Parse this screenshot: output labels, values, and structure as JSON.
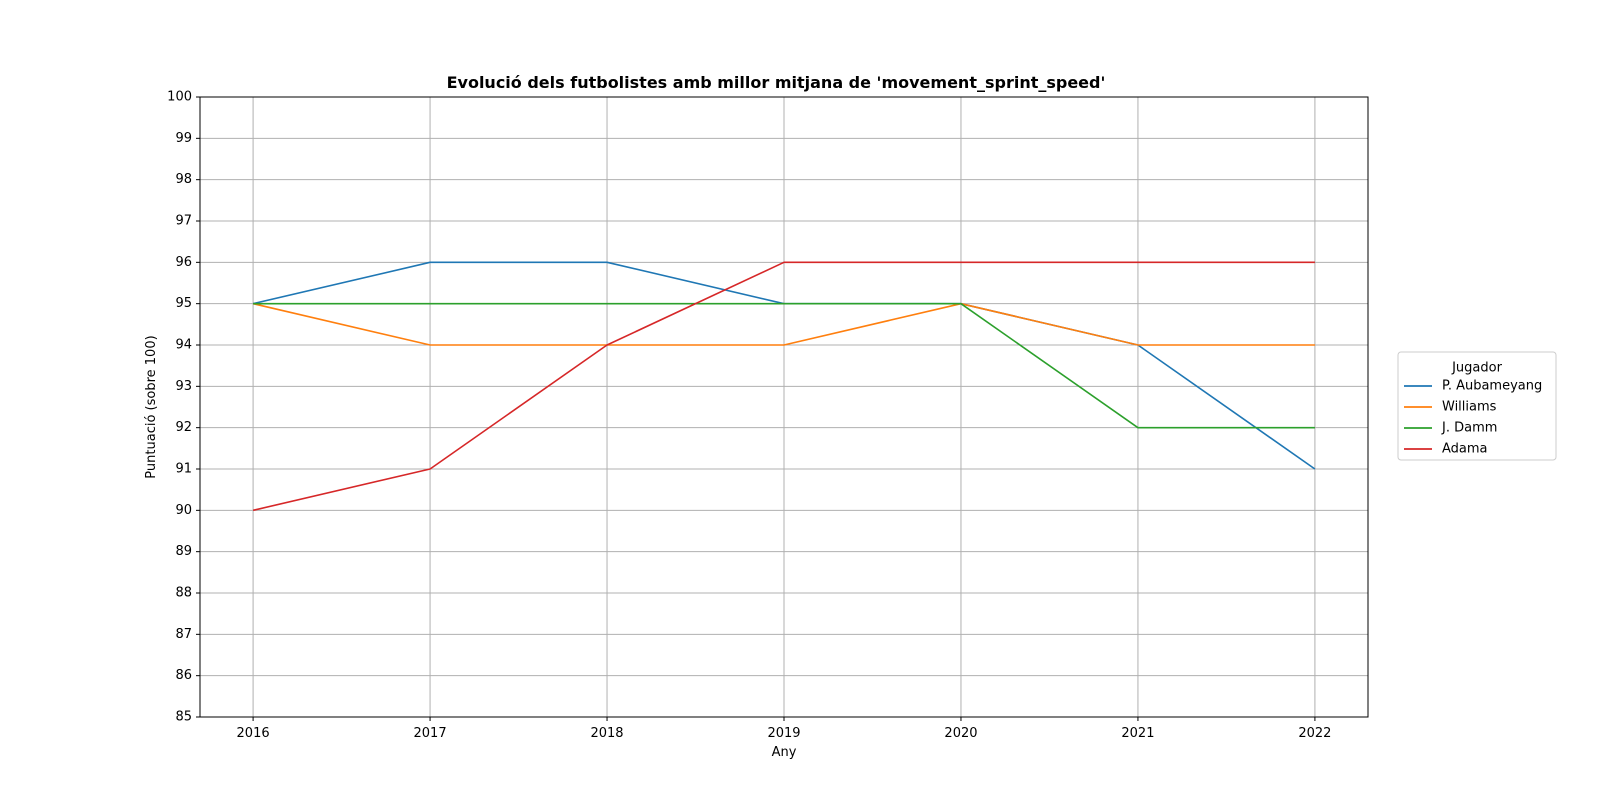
{
  "chart_data": {
    "type": "line",
    "title": "Evolució dels futbolistes amb millor mitjana de 'movement_sprint_speed'",
    "xlabel": "Any",
    "ylabel": "Puntuació (sobre 100)",
    "x": [
      2016,
      2017,
      2018,
      2019,
      2020,
      2021,
      2022
    ],
    "x_tick_labels": [
      "2016",
      "2017",
      "2018",
      "2019",
      "2020",
      "2021",
      "2022"
    ],
    "ylim": [
      85,
      100
    ],
    "y_ticks": [
      85,
      86,
      87,
      88,
      89,
      90,
      91,
      92,
      93,
      94,
      95,
      96,
      97,
      98,
      99,
      100
    ],
    "grid": true,
    "legend": {
      "title": "Jugador",
      "placement": "center-right outside"
    },
    "series": [
      {
        "name": "P. Aubameyang",
        "color": "#1f77b4",
        "values": [
          95,
          96,
          96,
          95,
          95,
          94,
          91
        ]
      },
      {
        "name": "Williams",
        "color": "#ff7f0e",
        "values": [
          95,
          94,
          94,
          94,
          95,
          94,
          94
        ]
      },
      {
        "name": "J. Damm",
        "color": "#2ca02c",
        "values": [
          95,
          95,
          95,
          95,
          95,
          92,
          92
        ]
      },
      {
        "name": "Adama",
        "color": "#d62728",
        "values": [
          90,
          91,
          94,
          96,
          96,
          96,
          96
        ]
      }
    ]
  }
}
